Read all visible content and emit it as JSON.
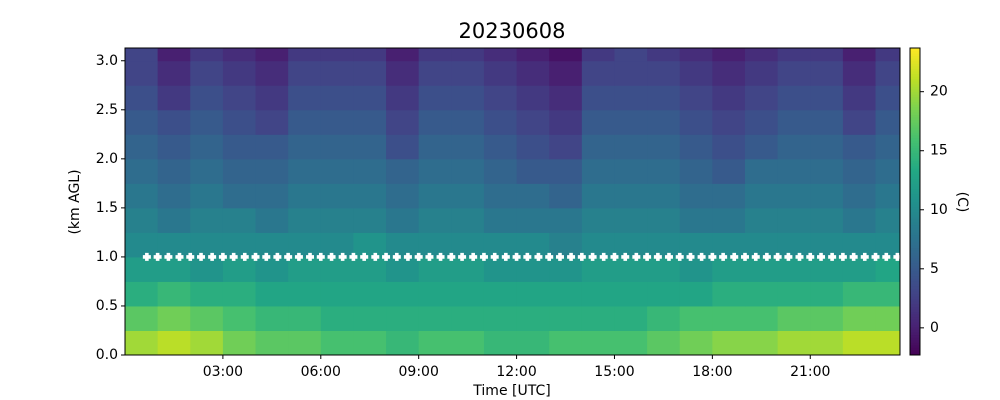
{
  "chart_data": {
    "type": "heatmap",
    "title": "20230608",
    "xlabel": "Time [UTC]",
    "ylabel": "(km AGL)",
    "colorbar_label": "(C)",
    "colormap": "viridis",
    "x": [
      0,
      1,
      2,
      3,
      4,
      5,
      6,
      7,
      8,
      9,
      10,
      11,
      12,
      13,
      14,
      15,
      16,
      17,
      18,
      19,
      20,
      21,
      22,
      23,
      23.75
    ],
    "y": [
      0,
      0.25,
      0.5,
      0.75,
      1,
      1.25,
      1.5,
      1.75,
      2,
      2.25,
      2.5,
      2.75,
      3,
      3.13
    ],
    "z": [
      [
        20,
        21,
        20,
        18,
        17,
        17,
        16,
        16,
        15,
        16,
        16,
        15,
        15,
        16,
        16,
        16,
        17,
        18,
        19,
        19,
        20,
        20,
        21,
        21
      ],
      [
        17,
        18,
        17,
        16,
        15,
        15,
        14,
        14,
        14,
        14,
        14,
        14,
        14,
        14,
        14,
        14,
        15,
        16,
        16,
        16,
        17,
        17,
        18,
        18
      ],
      [
        14,
        15,
        14,
        14,
        13,
        13,
        13,
        13,
        13,
        13,
        13,
        13,
        13,
        13,
        13,
        13,
        13,
        13,
        14,
        14,
        14,
        14,
        15,
        15
      ],
      [
        12,
        12,
        11,
        12,
        11,
        12,
        12,
        12,
        11,
        12,
        12,
        11,
        11,
        11,
        12,
        12,
        12,
        11,
        12,
        12,
        12,
        12,
        12,
        13
      ],
      [
        10,
        10,
        10,
        10,
        10,
        10,
        10,
        11,
        10,
        10,
        10,
        10,
        10,
        9,
        10,
        10,
        10,
        10,
        10,
        10,
        10,
        10,
        10,
        10
      ],
      [
        9,
        8,
        9,
        9,
        8,
        9,
        9,
        9,
        8,
        9,
        9,
        8,
        8,
        8,
        9,
        9,
        9,
        8,
        8,
        9,
        9,
        9,
        8,
        9
      ],
      [
        8,
        7,
        8,
        7,
        7,
        8,
        8,
        8,
        7,
        8,
        8,
        7,
        7,
        6,
        8,
        8,
        8,
        7,
        7,
        8,
        8,
        8,
        7,
        8
      ],
      [
        7,
        6,
        7,
        6,
        6,
        7,
        7,
        7,
        6,
        7,
        7,
        6,
        5,
        5,
        7,
        7,
        7,
        6,
        5,
        7,
        7,
        7,
        6,
        7
      ],
      [
        6,
        5,
        6,
        5,
        5,
        6,
        6,
        6,
        4,
        6,
        6,
        5,
        4,
        3,
        6,
        6,
        6,
        5,
        4,
        5,
        6,
        6,
        5,
        6
      ],
      [
        5,
        4,
        5,
        4,
        3,
        5,
        5,
        5,
        3,
        5,
        5,
        4,
        3,
        2,
        5,
        5,
        5,
        4,
        3,
        4,
        5,
        5,
        3,
        5
      ],
      [
        4,
        2,
        4,
        3,
        2,
        4,
        4,
        4,
        2,
        4,
        4,
        3,
        2,
        1,
        4,
        4,
        4,
        3,
        2,
        3,
        4,
        4,
        2,
        4
      ],
      [
        3,
        1,
        3,
        2,
        1,
        3,
        3,
        3,
        1,
        3,
        3,
        2,
        1,
        0,
        3,
        3,
        3,
        2,
        1,
        2,
        3,
        3,
        1,
        3
      ],
      [
        3,
        0,
        2,
        1,
        0,
        2,
        2,
        2,
        0,
        2,
        2,
        1,
        0,
        -1,
        2,
        3,
        2,
        1,
        0,
        1,
        2,
        2,
        0,
        2
      ]
    ],
    "xlim": [
      0,
      23.75
    ],
    "ylim": [
      0,
      3.13
    ],
    "clim": [
      -2.3,
      23.7
    ],
    "xticks": [
      {
        "value": 3,
        "label": "03:00"
      },
      {
        "value": 6,
        "label": "06:00"
      },
      {
        "value": 9,
        "label": "09:00"
      },
      {
        "value": 12,
        "label": "12:00"
      },
      {
        "value": 15,
        "label": "15:00"
      },
      {
        "value": 18,
        "label": "18:00"
      },
      {
        "value": 21,
        "label": "21:00"
      }
    ],
    "yticks": [
      {
        "value": 0,
        "label": "0.0"
      },
      0.5,
      {
        "value": 1,
        "label": "1.0"
      },
      1.5,
      {
        "value": 2,
        "label": "2.0"
      },
      2.5,
      {
        "value": 3,
        "label": "3.0"
      }
    ],
    "cticks": [
      0,
      5,
      10,
      15,
      20
    ],
    "markers": {
      "y": 1,
      "color": "#ffffff",
      "x": [
        0.67,
        1,
        1.33,
        1.67,
        2,
        2.33,
        2.67,
        3,
        3.33,
        3.67,
        4,
        4.33,
        4.67,
        5,
        5.33,
        5.67,
        6,
        6.33,
        6.67,
        7,
        7.33,
        7.67,
        8,
        8.33,
        8.67,
        9,
        9.33,
        9.67,
        10,
        10.33,
        10.67,
        11,
        11.33,
        11.67,
        12,
        12.33,
        12.67,
        13,
        13.33,
        13.67,
        14,
        14.33,
        14.67,
        15,
        15.33,
        15.67,
        16,
        16.33,
        16.67,
        17,
        17.33,
        17.67,
        18,
        18.33,
        18.67,
        19,
        19.33,
        19.67,
        20,
        20.33,
        20.67,
        21,
        21.33,
        21.67,
        22,
        22.33,
        22.67,
        23,
        23.33,
        23.67
      ]
    }
  }
}
